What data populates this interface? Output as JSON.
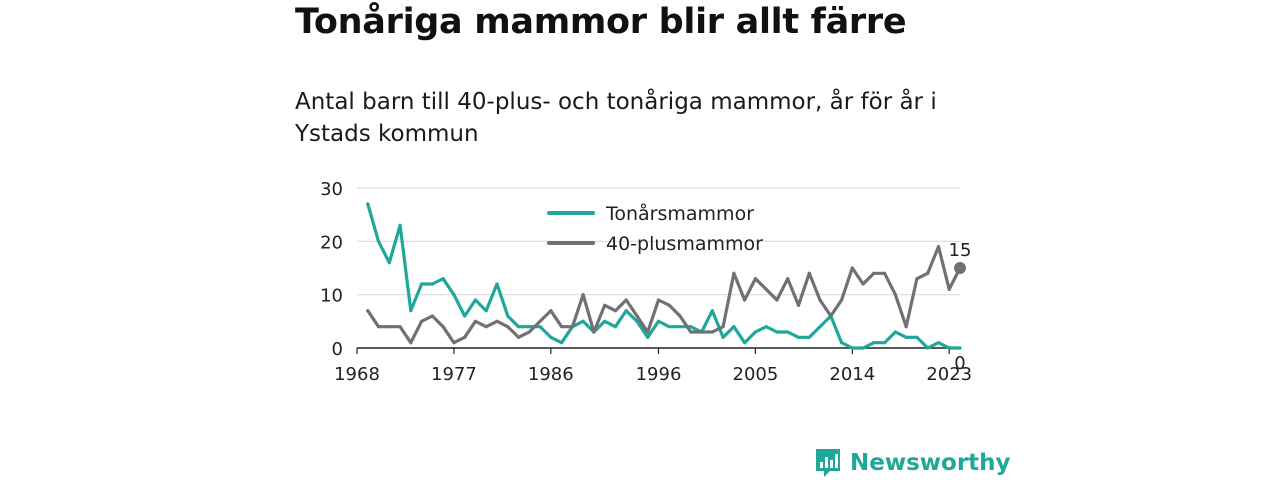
{
  "header": {
    "title": "Tonåriga mammor blir allt färre",
    "subtitle": "Antal barn till 40-plus- och tonåriga mammor, år för år i Ystads kommun"
  },
  "brand": {
    "name": "Newsworthy",
    "color": "#1fa79a",
    "icon": "newsworthy-logo-icon"
  },
  "chart_data": {
    "type": "line",
    "title": "",
    "xlabel": "",
    "ylabel": "",
    "x_ticks": [
      1968,
      1977,
      1986,
      1996,
      2005,
      2014,
      2023
    ],
    "y_ticks": [
      0,
      10,
      20,
      30
    ],
    "ylim": [
      0,
      30
    ],
    "xlim": [
      1968,
      2024
    ],
    "grid": true,
    "legend_position": "top-center",
    "x": [
      1969,
      1970,
      1971,
      1972,
      1973,
      1974,
      1975,
      1976,
      1977,
      1978,
      1979,
      1980,
      1981,
      1982,
      1983,
      1984,
      1985,
      1986,
      1987,
      1988,
      1989,
      1990,
      1991,
      1992,
      1993,
      1994,
      1995,
      1996,
      1997,
      1998,
      1999,
      2000,
      2001,
      2002,
      2003,
      2004,
      2005,
      2006,
      2007,
      2008,
      2009,
      2010,
      2011,
      2012,
      2013,
      2014,
      2015,
      2016,
      2017,
      2018,
      2019,
      2020,
      2021,
      2022,
      2023,
      2024
    ],
    "series": [
      {
        "name": "Tonårsmammor",
        "color": "#1fa79a",
        "values": [
          27,
          20,
          16,
          23,
          7,
          12,
          12,
          13,
          10,
          6,
          9,
          7,
          12,
          6,
          4,
          4,
          4,
          2,
          1,
          4,
          5,
          3,
          5,
          4,
          7,
          5,
          2,
          5,
          4,
          4,
          4,
          3,
          7,
          2,
          4,
          1,
          3,
          4,
          3,
          3,
          2,
          2,
          4,
          6,
          1,
          0,
          0,
          1,
          1,
          3,
          2,
          2,
          0,
          1,
          0,
          0
        ],
        "end_label": "0"
      },
      {
        "name": "40-plusmammor",
        "color": "#707075",
        "values": [
          7,
          4,
          4,
          4,
          1,
          5,
          6,
          4,
          1,
          2,
          5,
          4,
          5,
          4,
          2,
          3,
          5,
          7,
          4,
          4,
          10,
          3,
          8,
          7,
          9,
          6,
          3,
          9,
          8,
          6,
          3,
          3,
          3,
          4,
          14,
          9,
          13,
          11,
          9,
          13,
          8,
          14,
          9,
          6,
          9,
          15,
          12,
          14,
          14,
          10,
          4,
          13,
          14,
          19,
          11,
          15
        ],
        "end_label": "15"
      }
    ]
  }
}
